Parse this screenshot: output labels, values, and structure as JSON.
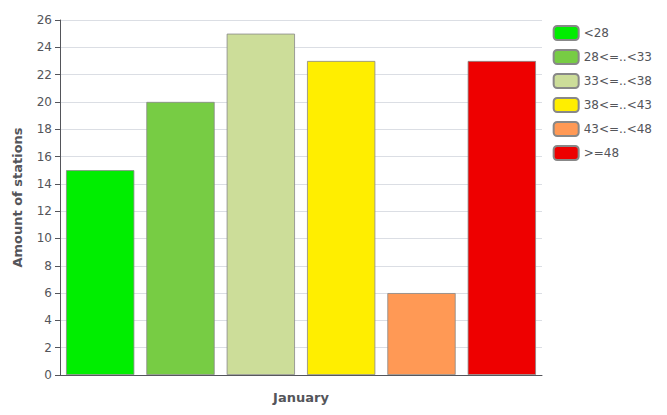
{
  "chart_data": {
    "type": "bar",
    "categories": [
      "<28",
      "28<=..<33",
      "33<=..<38",
      "38<=..<43",
      "43<=..<48",
      ">=48"
    ],
    "values": [
      15,
      20,
      25,
      23,
      6,
      23
    ],
    "colors": [
      "#00ee00",
      "#77cc44",
      "#ccdd99",
      "#ffee00",
      "#ff9955",
      "#ee0000"
    ],
    "xlabel": "January",
    "ylabel": "Amount of stations",
    "ylim": [
      0,
      26
    ],
    "yticks": [
      0,
      2,
      4,
      6,
      8,
      10,
      12,
      14,
      16,
      18,
      20,
      22,
      24,
      26
    ],
    "grid": true,
    "legend": "upper right",
    "tick_labels": "y"
  }
}
